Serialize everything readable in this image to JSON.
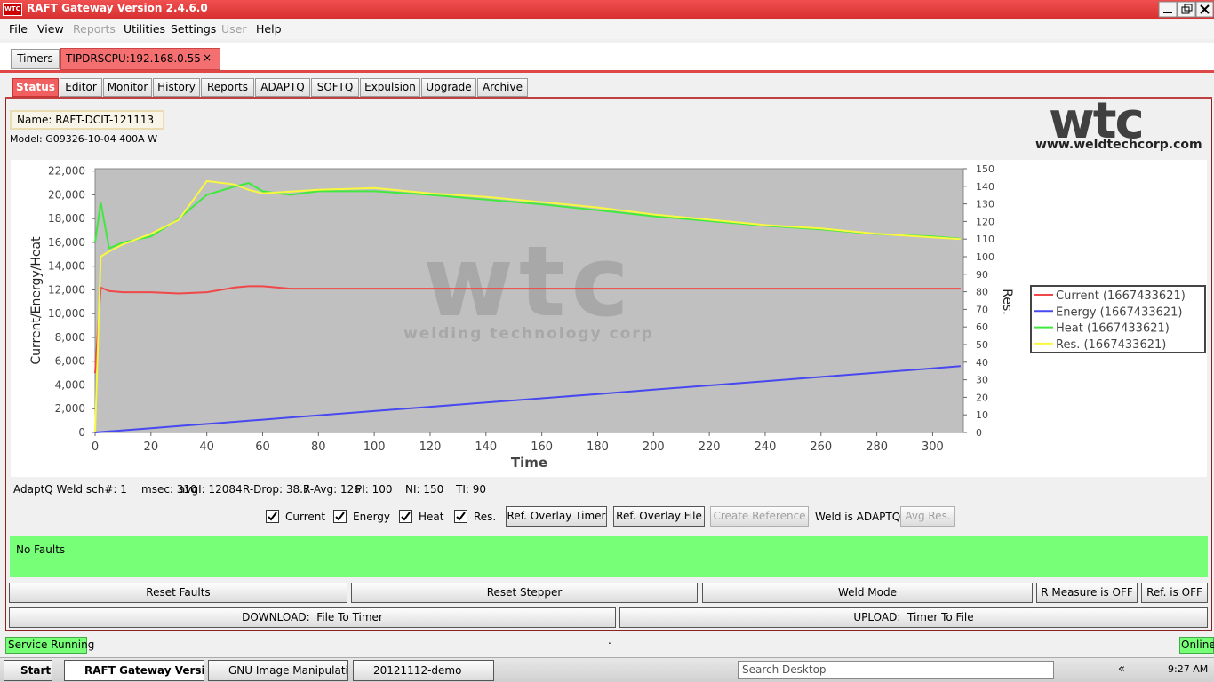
{
  "window": {
    "icon": "WTC",
    "title": "RAFT Gateway Version 2.4.6.0"
  },
  "menu": [
    "File",
    "View",
    "Reports",
    "Utilities",
    "Settings",
    "User",
    "Help"
  ],
  "connection_tabs": [
    "Timers",
    "TIPDRSCPU:192.168.0.55"
  ],
  "close": "×",
  "tabs": [
    "Status",
    "Editor",
    "Monitor",
    "History",
    "Reports",
    "ADAPTQ",
    "SOFTQ",
    "Expulsion",
    "Upgrade",
    "Archive"
  ],
  "device": {
    "name": "Name: RAFT-DCIT-121113",
    "model": "Model: G09326-10-04 400A W"
  },
  "logo": {
    "text": "wtc",
    "url": "www.weldtechcorp.com"
  },
  "chart_data": {
    "type": "line",
    "watermark": "wtc",
    "watermark_sub": "welding technology corp",
    "xlabel": "Time",
    "ylabel": "Current/Energy/Heat",
    "y2label": "Res.",
    "grid": false,
    "legend": "right",
    "background": "#c0c0c0",
    "x": [
      0,
      2,
      5,
      10,
      20,
      30,
      40,
      50,
      55,
      60,
      70,
      80,
      100,
      120,
      140,
      160,
      180,
      200,
      220,
      240,
      260,
      280,
      300,
      310
    ],
    "xlim": [
      0,
      311
    ],
    "xticks": [
      0,
      20,
      40,
      60,
      80,
      100,
      120,
      140,
      160,
      180,
      200,
      220,
      240,
      260,
      280,
      300
    ],
    "ylim": [
      0,
      22200
    ],
    "yticks": [
      0,
      {
        "value": 2000,
        "label": "2,000"
      },
      {
        "value": 4000,
        "label": "4,000"
      },
      {
        "value": 6000,
        "label": "6,000"
      },
      {
        "value": 8000,
        "label": "8,000"
      },
      {
        "value": 10000,
        "label": "10,000"
      },
      {
        "value": 12000,
        "label": "12,000"
      },
      {
        "value": 14000,
        "label": "14,000"
      },
      {
        "value": 16000,
        "label": "16,000"
      },
      {
        "value": 18000,
        "label": "18,000"
      },
      {
        "value": 20000,
        "label": "20,000"
      },
      {
        "value": 22000,
        "label": "22,000"
      }
    ],
    "y2lim": [
      0,
      150
    ],
    "y2ticks": [
      0,
      10,
      20,
      30,
      40,
      50,
      60,
      70,
      80,
      90,
      100,
      110,
      120,
      130,
      140,
      150
    ],
    "series": [
      {
        "name": "Current (1667433621)",
        "color": "#f04848",
        "values": [
          5000,
          12200,
          11900,
          11800,
          11800,
          11700,
          11800,
          12200,
          12300,
          12300,
          12100,
          12100,
          12100,
          12100,
          12100,
          12100,
          12100,
          12100,
          12100,
          12100,
          12100,
          12100,
          12100,
          12100
        ]
      },
      {
        "name": "Energy (1667433621)",
        "color": "#4848f0",
        "values": [
          0,
          36,
          90,
          180,
          360,
          540,
          720,
          900,
          990,
          1080,
          1260,
          1440,
          1800,
          2160,
          2520,
          2880,
          3240,
          3600,
          3960,
          4320,
          4680,
          5040,
          5400,
          5580
        ]
      },
      {
        "name": "Heat (1667433621)",
        "color": "#40e840",
        "values": [
          16000,
          19400,
          15500,
          16000,
          16500,
          18000,
          20000,
          20700,
          21000,
          20300,
          20000,
          20300,
          20300,
          20000,
          19600,
          19200,
          18700,
          18200,
          17800,
          17400,
          17100,
          16700,
          16500,
          16300
        ]
      },
      {
        "name": "Res. (1667433621)",
        "color": "#f8f840",
        "axis": "y2",
        "values": [
          0,
          100,
          103,
          107,
          113,
          121,
          143,
          141,
          138,
          136,
          137,
          138,
          139,
          136,
          134,
          131,
          128,
          124,
          121,
          118,
          116,
          113,
          111,
          110
        ]
      }
    ]
  },
  "stats": [
    "AdaptQ Weld sch#: 1",
    "msec: 310",
    "avgI: 12084",
    "R-Drop: 38.7",
    "R-Avg: 126",
    "PI: 100",
    "NI: 150",
    "TI: 90"
  ],
  "checkboxes": [
    "Current",
    "Energy",
    "Heat",
    "Res."
  ],
  "buttons": [
    "Ref. Overlay Timer",
    "Ref. Overlay File",
    "Create Reference"
  ],
  "weld_mode_text": "Weld is ADAPTQ",
  "avg_button": "Avg Res.",
  "fault_status": "No Faults",
  "actions": [
    "Reset Faults",
    "Reset Stepper",
    "Weld Mode",
    "R Measure is OFF",
    "Ref. is OFF"
  ],
  "transfer": [
    "DOWNLOAD:  File To Timer",
    "UPLOAD:  Timer To File"
  ],
  "status_bar": {
    "left": "Service Running",
    "middle": ".",
    "right": "Online"
  },
  "taskbar": {
    "start": "Start",
    "items": [
      "RAFT Gateway Versio...",
      "GNU Image Manipulation ...",
      "20121112-demo"
    ],
    "search": "Search Desktop",
    "tray": "«",
    "time": "9:27 AM"
  }
}
